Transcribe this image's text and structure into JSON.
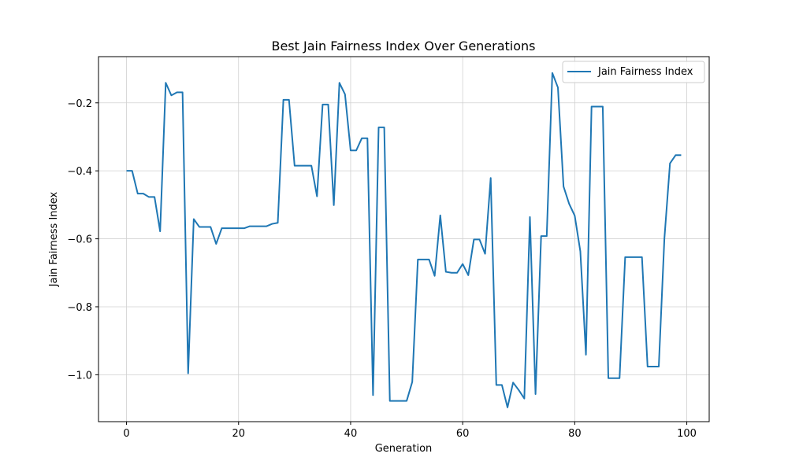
{
  "chart_data": {
    "type": "line",
    "title": "Best Jain Fairness Index Over Generations",
    "xlabel": "Generation",
    "ylabel": "Jain Fairness Index",
    "xlim": [
      -5,
      104
    ],
    "ylim": [
      -1.138,
      -0.064
    ],
    "xticks": [
      0,
      20,
      40,
      60,
      80,
      100
    ],
    "yticks": [
      -1.0,
      -0.8,
      -0.6,
      -0.4,
      -0.2
    ],
    "grid": true,
    "legend_position": "upper right",
    "colors": {
      "series": "#1f77b4",
      "grid": "#d0d0d0",
      "axes": "#000000"
    },
    "series": [
      {
        "name": "Jain Fairness Index",
        "x": [
          0,
          1,
          2,
          3,
          4,
          5,
          6,
          7,
          8,
          9,
          10,
          11,
          12,
          13,
          14,
          15,
          16,
          17,
          18,
          19,
          20,
          21,
          22,
          23,
          24,
          25,
          26,
          27,
          28,
          29,
          30,
          31,
          32,
          33,
          34,
          35,
          36,
          37,
          38,
          39,
          40,
          41,
          42,
          43,
          44,
          45,
          46,
          47,
          48,
          49,
          50,
          51,
          52,
          53,
          54,
          55,
          56,
          57,
          58,
          59,
          60,
          61,
          62,
          63,
          64,
          65,
          66,
          67,
          68,
          69,
          70,
          71,
          72,
          73,
          74,
          75,
          76,
          77,
          78,
          79,
          80,
          81,
          82,
          83,
          84,
          85,
          86,
          87,
          88,
          89,
          90,
          91,
          92,
          93,
          94,
          95,
          96,
          97,
          98,
          99
        ],
        "values": [
          -0.4,
          -0.4,
          -0.467,
          -0.467,
          -0.477,
          -0.477,
          -0.578,
          -0.141,
          -0.178,
          -0.169,
          -0.169,
          -0.996,
          -0.542,
          -0.565,
          -0.565,
          -0.565,
          -0.615,
          -0.569,
          -0.569,
          -0.569,
          -0.569,
          -0.569,
          -0.563,
          -0.563,
          -0.563,
          -0.563,
          -0.556,
          -0.553,
          -0.191,
          -0.191,
          -0.385,
          -0.385,
          -0.385,
          -0.385,
          -0.475,
          -0.205,
          -0.205,
          -0.501,
          -0.141,
          -0.175,
          -0.34,
          -0.34,
          -0.304,
          -0.304,
          -1.06,
          -0.272,
          -0.272,
          -1.077,
          -1.077,
          -1.077,
          -1.077,
          -1.021,
          -0.661,
          -0.661,
          -0.661,
          -0.709,
          -0.531,
          -0.697,
          -0.7,
          -0.7,
          -0.674,
          -0.707,
          -0.602,
          -0.602,
          -0.644,
          -0.421,
          -1.03,
          -1.03,
          -1.096,
          -1.023,
          -1.045,
          -1.07,
          -0.536,
          -1.057,
          -0.592,
          -0.592,
          -0.112,
          -0.155,
          -0.446,
          -0.497,
          -0.532,
          -0.637,
          -0.941,
          -0.211,
          -0.211,
          -0.211,
          -1.01,
          -1.01,
          -1.01,
          -0.654,
          -0.654,
          -0.654,
          -0.654,
          -0.976,
          -0.976,
          -0.976,
          -0.6,
          -0.378,
          -0.354,
          -0.354
        ]
      }
    ]
  }
}
